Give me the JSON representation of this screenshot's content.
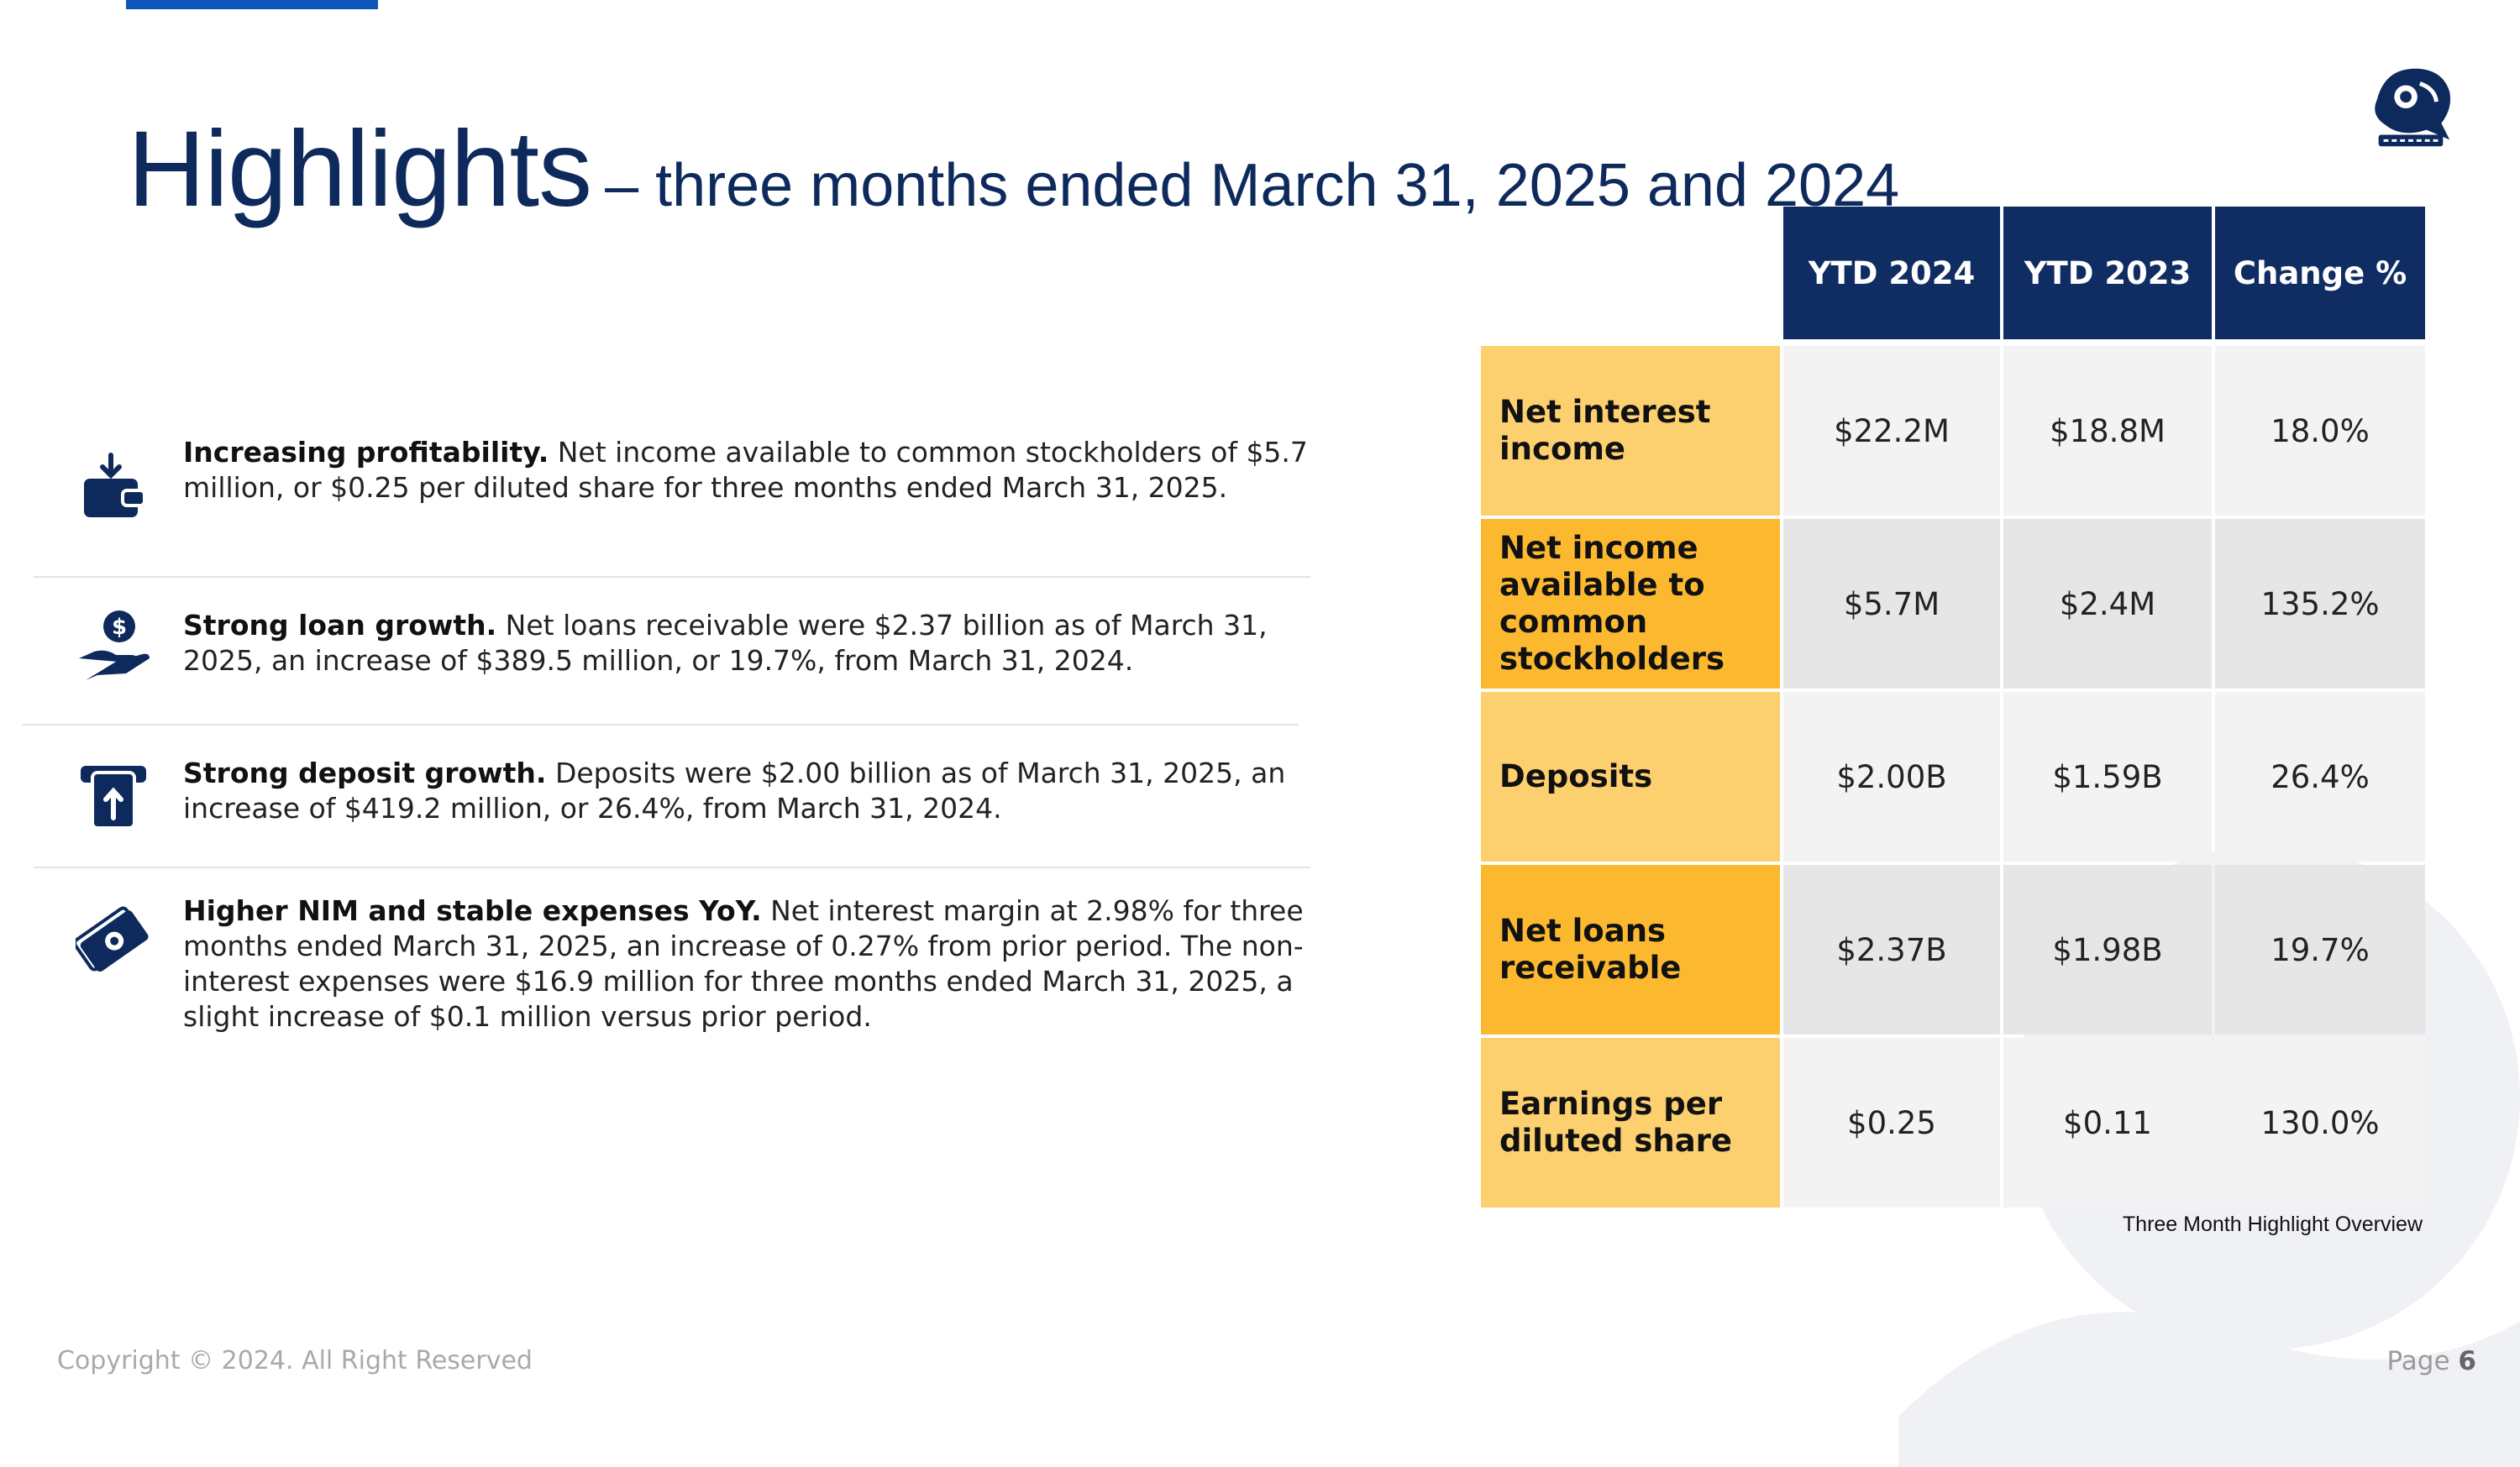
{
  "title": {
    "main": "Highlights",
    "sub": "– three months ended March 31, 2025 and 2024"
  },
  "bullets": [
    {
      "icon": "wallet-download-icon",
      "bold": "Increasing profitability.",
      "text": " Net income available to common stockholders of $5.7 million, or $0.25 per diluted share for three months ended March 31, 2025."
    },
    {
      "icon": "hand-dollar-icon",
      "bold": "Strong loan growth.",
      "text": " Net loans receivable were $2.37 billion as of March 31, 2025, an increase of $389.5 million, or 19.7%, from March 31, 2024."
    },
    {
      "icon": "deposit-atm-icon",
      "bold": "Strong deposit growth.",
      "text": " Deposits were $2.00 billion as of March 31, 2025, an increase of $419.2 million, or 26.4%, from March 31, 2024."
    },
    {
      "icon": "money-bills-icon",
      "bold": "Higher NIM and stable expenses YoY.",
      "text": " Net interest margin at 2.98% for three months ended March 31, 2025, an increase of 0.27% from prior period. The non-interest expenses were $16.9 million for three months ended March 31, 2025, a slight increase of $0.1 million versus prior period."
    }
  ],
  "table": {
    "headers": [
      "YTD 2024",
      "YTD 2023",
      "Change %"
    ],
    "rows": [
      {
        "label": "Net interest income",
        "values": [
          "$22.2M",
          "$18.8M",
          "18.0%"
        ]
      },
      {
        "label": "Net income available to common stockholders",
        "values": [
          "$5.7M",
          "$2.4M",
          "135.2%"
        ]
      },
      {
        "label": "Deposits",
        "values": [
          "$2.00B",
          "$1.59B",
          "26.4%"
        ]
      },
      {
        "label": "Net loans receivable",
        "values": [
          "$2.37B",
          "$1.98B",
          "19.7%"
        ]
      },
      {
        "label": "Earnings per diluted share",
        "values": [
          "$0.25",
          "$0.11",
          "130.0%"
        ]
      }
    ],
    "caption": "Three Month Highlight Overview"
  },
  "colors": {
    "navy": "#0f2d63",
    "label_light": "#fdd06f",
    "label_dark": "#fcb930",
    "cell_light": "#f3f3f3",
    "cell_dark": "#e6e6e6"
  },
  "footer": {
    "copyright": "Copyright © 2024. All Right Reserved",
    "page_label": "Page",
    "page_number": "6"
  }
}
